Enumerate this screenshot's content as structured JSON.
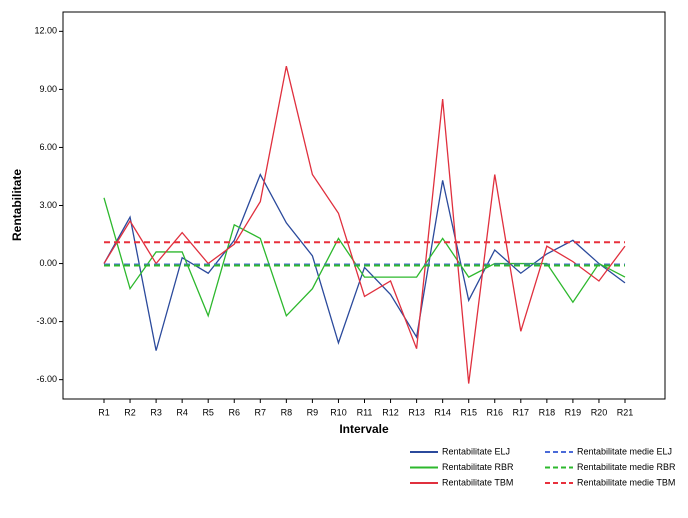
{
  "chart_data": {
    "type": "line",
    "x_label": "Intervale",
    "y_label": "Rentabilitate",
    "categories": [
      "R1",
      "R2",
      "R3",
      "R4",
      "R5",
      "R6",
      "R7",
      "R8",
      "R9",
      "R10",
      "R11",
      "R12",
      "R13",
      "R14",
      "R15",
      "R16",
      "R17",
      "R18",
      "R19",
      "R20",
      "R21"
    ],
    "ylim": [
      -7,
      13
    ],
    "yticks": [
      {
        "value": -6,
        "label": "-6.00"
      },
      {
        "value": -3,
        "label": "-3.00"
      },
      {
        "value": 0,
        "label": "0.00"
      },
      {
        "value": 3,
        "label": "3.00"
      },
      {
        "value": 6,
        "label": "6.00"
      },
      {
        "value": 9,
        "label": "9.00"
      },
      {
        "value": 12,
        "label": "12.00"
      }
    ],
    "series": [
      {
        "name": "Rentabilitate ELJ",
        "color": "#2b4a9c",
        "dashed": false,
        "values": [
          0,
          2.4,
          -4.5,
          0.3,
          -0.5,
          1.2,
          4.6,
          2.1,
          0.4,
          -4.1,
          -0.2,
          -1.6,
          -3.8,
          4.3,
          -1.9,
          0.7,
          -0.5,
          0.5,
          1.2,
          0,
          -1.0
        ]
      },
      {
        "name": "Rentabilitate RBR",
        "color": "#2db82d",
        "dashed": false,
        "values": [
          3.4,
          -1.3,
          0.6,
          0.6,
          -2.7,
          2.0,
          1.3,
          -2.7,
          -1.3,
          1.3,
          -0.7,
          -0.7,
          -0.7,
          1.3,
          -0.7,
          0,
          0,
          0,
          -2.0,
          0,
          -0.7
        ]
      },
      {
        "name": "Rentabilitate TBM",
        "color": "#e0303e",
        "dashed": false,
        "values": [
          0,
          2.2,
          0,
          1.6,
          0,
          1.0,
          3.2,
          10.2,
          4.6,
          2.6,
          -1.7,
          -0.9,
          -4.4,
          8.5,
          -6.2,
          4.6,
          -3.5,
          0.9,
          0.1,
          -0.9,
          0.9
        ]
      },
      {
        "name": "Rentabilitate medie ELJ",
        "color": "#4a6ad8",
        "dashed": true,
        "values": [
          -0.05,
          -0.05,
          -0.05,
          -0.05,
          -0.05,
          -0.05,
          -0.05,
          -0.05,
          -0.05,
          -0.05,
          -0.05,
          -0.05,
          -0.05,
          -0.05,
          -0.05,
          -0.05,
          -0.05,
          -0.05,
          -0.05,
          -0.05,
          -0.05
        ]
      },
      {
        "name": "Rentabilitate medie RBR",
        "color": "#2db82d",
        "dashed": true,
        "values": [
          -0.1,
          -0.1,
          -0.1,
          -0.1,
          -0.1,
          -0.1,
          -0.1,
          -0.1,
          -0.1,
          -0.1,
          -0.1,
          -0.1,
          -0.1,
          -0.1,
          -0.1,
          -0.1,
          -0.1,
          -0.1,
          -0.1,
          -0.1,
          -0.1
        ]
      },
      {
        "name": "Rentabilitate medie TBM",
        "color": "#e8303c",
        "dashed": true,
        "values": [
          1.1,
          1.1,
          1.1,
          1.1,
          1.1,
          1.1,
          1.1,
          1.1,
          1.1,
          1.1,
          1.1,
          1.1,
          1.1,
          1.1,
          1.1,
          1.1,
          1.1,
          1.1,
          1.1,
          1.1,
          1.1
        ]
      }
    ]
  }
}
